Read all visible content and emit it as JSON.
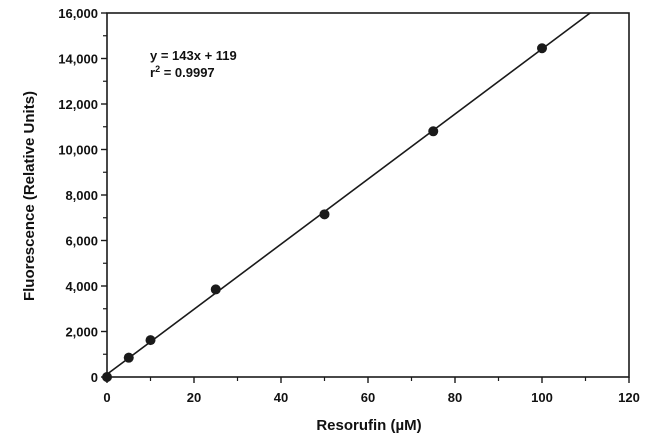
{
  "chart_data": {
    "type": "scatter",
    "title": "",
    "xlabel": "Resorufin (µM)",
    "ylabel": "Fluorescence (Relative Units)",
    "xlim": [
      0,
      120
    ],
    "ylim": [
      0,
      16000
    ],
    "x_ticks": [
      0,
      20,
      40,
      60,
      80,
      100,
      120
    ],
    "x_tick_labels": [
      "0",
      "20",
      "40",
      "60",
      "80",
      "100",
      "120"
    ],
    "y_ticks": [
      0,
      2000,
      4000,
      6000,
      8000,
      10000,
      12000,
      14000,
      16000
    ],
    "y_tick_labels": [
      "0",
      "2,000",
      "4,000",
      "6,000",
      "8,000",
      "10,000",
      "12,000",
      "14,000",
      "16,000"
    ],
    "grid": false,
    "legend": "none",
    "series": [
      {
        "x": [
          0,
          5,
          10,
          25,
          50,
          75,
          100
        ],
        "y": [
          0,
          850,
          1620,
          3850,
          7150,
          10800,
          14450
        ]
      }
    ],
    "fit_line": {
      "slope": 143,
      "intercept": 119,
      "x_range": [
        0,
        120
      ]
    },
    "annotations": {
      "equation": "y = 143x + 119",
      "r2_prefix": "r",
      "r2_sup": "2",
      "r2_value": " = 0.9997"
    },
    "colors": {
      "marker": "#1a1a1a",
      "line": "#1a1a1a",
      "axis": "#1a1a1a"
    }
  }
}
